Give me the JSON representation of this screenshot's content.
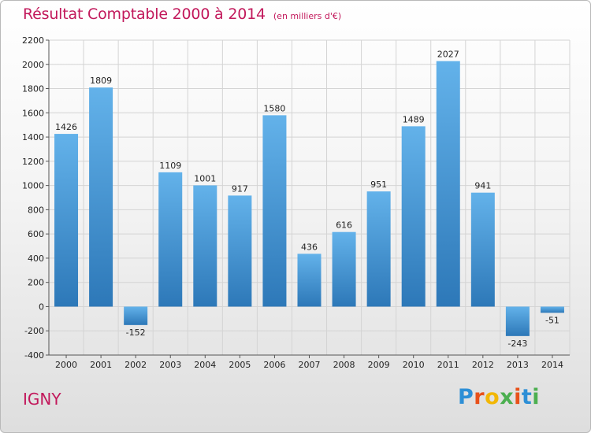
{
  "title": "Résultat Comptable 2000 à 2014",
  "subtitle": "(en milliers d'€)",
  "commune": "IGNY",
  "logo": {
    "letters": [
      "P",
      "r",
      "o",
      "x",
      "i",
      "t",
      "i"
    ],
    "colors": [
      "#2d8fd6",
      "#e8511a",
      "#f2b705",
      "#4caf50",
      "#e8511a",
      "#2d8fd6",
      "#4caf50"
    ]
  },
  "colors": {
    "bar_top": "#63b2ea",
    "bar_bottom": "#2d78b8",
    "grid": "#d4d4d4",
    "accent": "#c2185b"
  },
  "chart_data": {
    "type": "bar",
    "categories": [
      "2000",
      "2001",
      "2002",
      "2003",
      "2004",
      "2005",
      "2006",
      "2007",
      "2008",
      "2009",
      "2010",
      "2011",
      "2012",
      "2013",
      "2014"
    ],
    "values": [
      1426,
      1809,
      -152,
      1109,
      1001,
      917,
      1580,
      436,
      616,
      951,
      1489,
      2027,
      941,
      -243,
      -51
    ],
    "title": "Résultat Comptable 2000 à 2014",
    "xlabel": "",
    "ylabel": "",
    "ylim": [
      -400,
      2200
    ],
    "yticks": [
      -400,
      -200,
      0,
      200,
      400,
      600,
      800,
      1000,
      1200,
      1400,
      1600,
      1800,
      2000,
      2200
    ],
    "grid": true,
    "legend": "none"
  }
}
